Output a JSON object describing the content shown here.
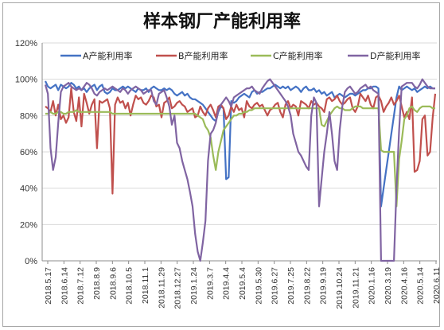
{
  "chart_data": {
    "type": "line",
    "title": "样本钢厂产能利用率",
    "xlabel": "",
    "ylabel": "",
    "ylim": [
      0,
      120
    ],
    "yticks": [
      "0%",
      "20%",
      "40%",
      "60%",
      "80%",
      "100%",
      "120%"
    ],
    "grid": true,
    "legend_position": "top",
    "x_ticks": [
      "2018.5.17",
      "2018.6.14",
      "2018.7.12",
      "2018.8.9",
      "2018.9.6",
      "2018.10.5",
      "2018.11.1",
      "2018.11.29",
      "2018.12.27",
      "2019.1.24",
      "2019.3.7",
      "2019.4.4",
      "2019.5.4",
      "2019.5.30",
      "2019.6.27",
      "2019.7.25",
      "2019.8.22",
      "2019.9.19",
      "2019.10.24",
      "2019.11.21",
      "2020.1.16",
      "2020.3.19",
      "2020.4.16",
      "2020.5.14",
      "2020.6.11"
    ],
    "series": [
      {
        "name": "A产能利用率",
        "color": "#4472C4",
        "values": [
          99,
          96,
          95,
          96,
          97,
          94,
          97,
          96,
          95,
          96,
          98,
          97,
          95,
          96,
          94,
          95,
          93,
          95,
          96,
          97,
          94,
          96,
          97,
          93,
          92,
          93,
          95,
          94,
          94,
          95,
          96,
          95,
          96,
          95,
          94,
          93,
          95,
          94,
          94,
          95,
          93,
          95,
          96,
          95,
          94,
          94,
          95,
          94,
          95,
          94,
          92,
          91,
          92,
          93,
          91,
          92,
          90,
          89,
          89,
          88,
          87,
          86,
          84,
          82,
          80,
          78,
          77,
          82,
          85,
          84,
          45,
          46,
          88,
          87,
          88,
          90,
          91,
          92,
          91,
          90,
          93,
          94,
          92,
          93,
          93,
          94,
          95,
          95,
          96,
          97,
          96,
          95,
          96,
          95,
          96,
          94,
          95,
          96,
          95,
          93,
          95,
          96,
          94,
          94,
          95,
          93,
          94,
          92,
          93,
          91,
          92,
          93,
          90,
          91,
          92,
          91,
          90,
          91,
          92,
          92,
          91,
          92,
          93,
          94,
          94,
          95,
          95,
          96,
          96,
          95,
          30,
          40,
          50,
          60,
          70,
          80,
          90,
          96,
          94,
          95,
          96,
          95,
          94,
          95,
          93,
          94,
          95,
          96,
          95,
          96,
          95,
          95
        ]
      },
      {
        "name": "B产能利用率",
        "color": "#C0504D",
        "values": [
          85,
          84,
          82,
          88,
          80,
          86,
          78,
          80,
          76,
          79,
          95,
          82,
          77,
          90,
          74,
          92,
          87,
          81,
          86,
          89,
          62,
          88,
          87,
          88,
          89,
          84,
          37,
          86,
          90,
          87,
          88,
          84,
          87,
          80,
          86,
          91,
          89,
          90,
          87,
          86,
          88,
          91,
          90,
          85,
          86,
          79,
          87,
          88,
          90,
          84,
          85,
          87,
          88,
          86,
          85,
          82,
          83,
          84,
          79,
          80,
          85,
          82,
          80,
          84,
          86,
          83,
          79,
          85,
          86,
          84,
          78,
          80,
          85,
          82,
          86,
          83,
          84,
          79,
          88,
          85,
          84,
          86,
          87,
          85,
          86,
          83,
          80,
          83,
          84,
          86,
          87,
          82,
          79,
          86,
          88,
          84,
          86,
          85,
          80,
          88,
          87,
          86,
          84,
          88,
          86,
          87,
          85,
          84,
          82,
          89,
          90,
          88,
          89,
          91,
          88,
          86,
          87,
          89,
          90,
          84,
          82,
          85,
          92,
          90,
          88,
          91,
          86,
          84,
          90,
          91,
          88,
          82,
          85,
          87,
          90,
          86,
          88,
          91,
          85,
          79,
          82,
          78,
          90,
          49,
          50,
          55,
          78,
          80,
          58,
          60,
          79,
          92
        ]
      },
      {
        "name": "C产能利用率",
        "color": "#9BBB59",
        "values": [
          81,
          81,
          82,
          81,
          81,
          82,
          82,
          81,
          81,
          82,
          82,
          82,
          83,
          82,
          82,
          82,
          82,
          82,
          82,
          82,
          82,
          82,
          82,
          82,
          82,
          82,
          81,
          81,
          81,
          81,
          81,
          81,
          81,
          81,
          81,
          81,
          81,
          81,
          81,
          81,
          81,
          81,
          81,
          81,
          81,
          81,
          81,
          81,
          81,
          81,
          81,
          81,
          81,
          81,
          81,
          81,
          81,
          81,
          81,
          80,
          79,
          78,
          74,
          72,
          68,
          58,
          50,
          60,
          66,
          72,
          74,
          76,
          78,
          80,
          80,
          81,
          81,
          82,
          82,
          83,
          83,
          84,
          84,
          84,
          84,
          84,
          84,
          84,
          84,
          84,
          84,
          84,
          84,
          84,
          84,
          84,
          84,
          84,
          84,
          84,
          84,
          84,
          84,
          84,
          84,
          84,
          84,
          75,
          74,
          77,
          80,
          82,
          84,
          85,
          84,
          84,
          83,
          83,
          83,
          84,
          85,
          85,
          85,
          84,
          84,
          84,
          84,
          84,
          84,
          84,
          61,
          60,
          60,
          60,
          60,
          60,
          30,
          56,
          66,
          78,
          80,
          84,
          85,
          83,
          82,
          84,
          85,
          85,
          85,
          85,
          84,
          84
        ]
      },
      {
        "name": "D产能利用率",
        "color": "#8064A2",
        "values": [
          97,
          92,
          62,
          50,
          57,
          76,
          93,
          96,
          97,
          98,
          96,
          95,
          94,
          95,
          94,
          96,
          98,
          97,
          95,
          92,
          91,
          93,
          94,
          95,
          94,
          95,
          96,
          95,
          94,
          93,
          95,
          94,
          92,
          94,
          95,
          96,
          95,
          94,
          92,
          93,
          94,
          94,
          88,
          86,
          92,
          93,
          94,
          90,
          85,
          75,
          80,
          65,
          62,
          55,
          50,
          45,
          38,
          30,
          15,
          5,
          0,
          10,
          22,
          55,
          70,
          72,
          76,
          83,
          86,
          88,
          90,
          88,
          85,
          90,
          91,
          92,
          93,
          94,
          95,
          95,
          96,
          94,
          93,
          92,
          95,
          97,
          99,
          100,
          98,
          96,
          94,
          92,
          90,
          88,
          85,
          80,
          70,
          65,
          60,
          58,
          55,
          52,
          50,
          80,
          90,
          87,
          30,
          45,
          60,
          70,
          82,
          70,
          55,
          50,
          72,
          85,
          93,
          95,
          96,
          94,
          92,
          93,
          95,
          96,
          97,
          95,
          96,
          94,
          93,
          92,
          0,
          0,
          0,
          0,
          0,
          0,
          40,
          72,
          96,
          97,
          98,
          98,
          98,
          96,
          95,
          97,
          100,
          98,
          96,
          95,
          95,
          95
        ]
      }
    ]
  }
}
